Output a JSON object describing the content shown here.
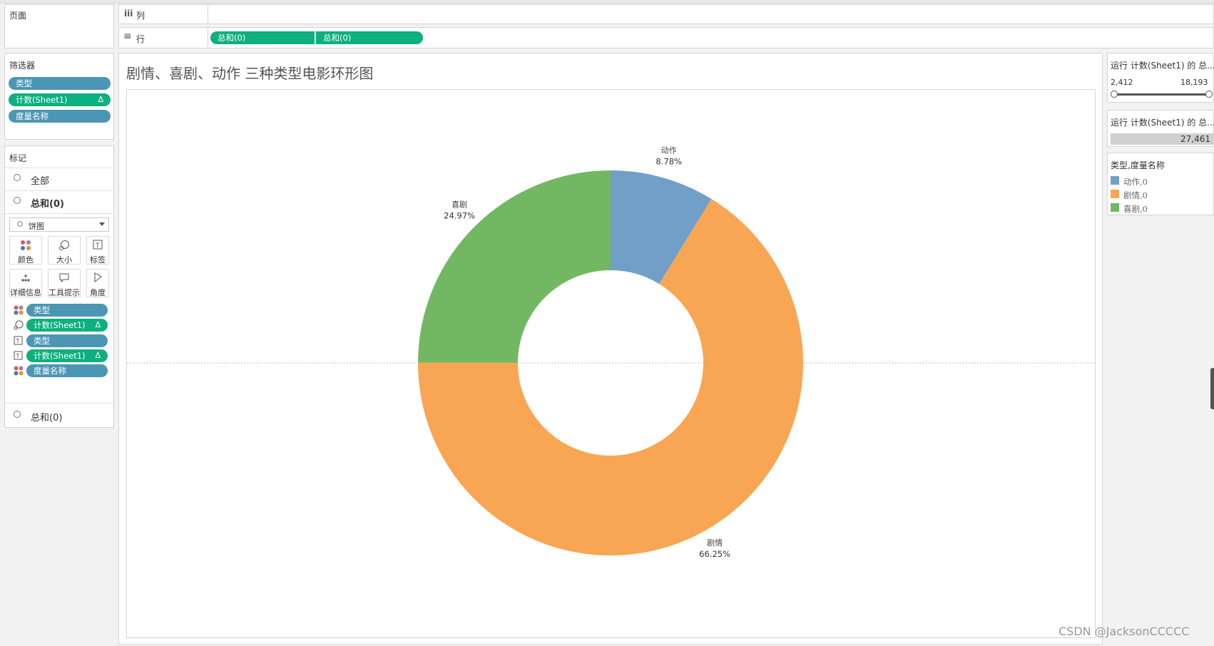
{
  "pages_shelf": {
    "title": "页面"
  },
  "columns_shelf": {
    "icon": "iii",
    "title": "列"
  },
  "rows_shelf": {
    "icon": "≡",
    "title": "行",
    "pills": [
      "总和(0)",
      "总和(0)"
    ]
  },
  "filters": {
    "title": "筛选器",
    "items": [
      {
        "label": "类型",
        "color": "blue"
      },
      {
        "label": "计数(Sheet1)",
        "color": "green",
        "delta": "Δ"
      },
      {
        "label": "度量名称",
        "color": "blue"
      }
    ]
  },
  "marks": {
    "title": "标记",
    "all_label": "全部",
    "sum1_label": "总和(0)",
    "mark_type": "饼图",
    "tiles": [
      "颜色",
      "大小",
      "标签",
      "详细信息",
      "工具提示",
      "角度"
    ],
    "fields": [
      {
        "label": "类型",
        "color": "blue"
      },
      {
        "label": "计数(Sheet1)",
        "color": "green",
        "delta": "Δ"
      },
      {
        "label": "类型",
        "color": "blue"
      },
      {
        "label": "计数(Sheet1)",
        "color": "green",
        "delta": "Δ"
      },
      {
        "label": "度量名称",
        "color": "blue"
      }
    ],
    "sum2_label": "总和(0)"
  },
  "view": {
    "title": "剧情、喜剧、动作 三种类型电影环形图"
  },
  "right_panel": {
    "range_filter": {
      "title": "运行 计数(Sheet1) 的 总...",
      "min": "2,412",
      "max": "18,193"
    },
    "size_legend": {
      "title": "运行 计数(Sheet1) 的 总...",
      "value": "27,461"
    },
    "color_legend": {
      "title": "类型,度量名称",
      "items": [
        {
          "label": "动作,0",
          "color": "#729fc8"
        },
        {
          "label": "剧情,0",
          "color": "#f8a654"
        },
        {
          "label": "喜剧,0",
          "color": "#72b862"
        }
      ]
    }
  },
  "watermark": "CSDN @JacksonCCCCC",
  "chart_data": {
    "type": "pie",
    "title": "剧情、喜剧、动作 三种类型电影环形图",
    "donut": true,
    "slices": [
      {
        "label": "动作",
        "percent_label": "8.78%",
        "value": 8.78,
        "color": "#729fc8"
      },
      {
        "label": "剧情",
        "percent_label": "66.25%",
        "value": 66.25,
        "color": "#f8a654"
      },
      {
        "label": "喜剧",
        "percent_label": "24.97%",
        "value": 24.97,
        "color": "#72b862"
      }
    ]
  }
}
